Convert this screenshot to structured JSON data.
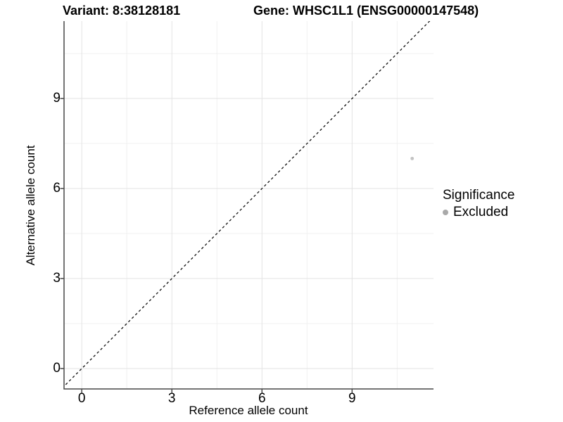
{
  "chart_data": {
    "type": "scatter",
    "title_left": "Variant: 8:38128181",
    "title_right": "Gene: WHSC1L1 (ENSG00000147548)",
    "xlabel": "Reference allele count",
    "ylabel": "Alternative allele count",
    "xlim": [
      -0.59,
      11.71
    ],
    "ylim": [
      -0.68,
      11.58
    ],
    "xticks": [
      0,
      3,
      6,
      9
    ],
    "yticks": [
      0,
      3,
      6,
      9
    ],
    "xticks_minor": [
      1.5,
      4.5,
      7.5,
      10.5
    ],
    "yticks_minor": [
      1.5,
      4.5,
      7.5,
      10.5
    ],
    "grid": "major+minor",
    "reference_line": {
      "kind": "identity",
      "slope": 1,
      "intercept": 0,
      "style": "dashed",
      "color": "#111111"
    },
    "series": [
      {
        "name": "Excluded",
        "color": "#c3c3c3",
        "points": [
          {
            "x": 11,
            "y": 7
          }
        ]
      }
    ],
    "legend": {
      "title": "Significance",
      "position": "right",
      "entries": [
        {
          "label": "Excluded",
          "color": "#a9a9a9",
          "marker": "circle"
        }
      ]
    },
    "colors": {
      "axis": "#474747",
      "grid_major": "#e3e3e3",
      "grid_minor": "#f0f0f0",
      "background": "#ffffff",
      "text": "#000000"
    }
  }
}
